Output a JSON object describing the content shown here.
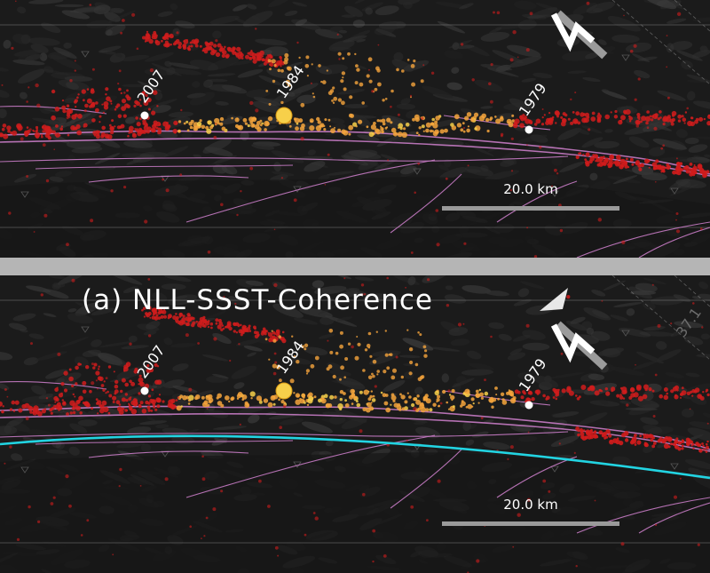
{
  "colors": {
    "terrain": "#1b1b1b",
    "fault_lines": "#c77bc4",
    "events_red": "#d01c1c",
    "events_orange": "#f5a43c",
    "events_yellow": "#f7d04a",
    "reference_curve": "#22d4e2",
    "scale_bar": "#9a9a9a",
    "separator": "#b5b5b5"
  },
  "panels": [
    {
      "title": "",
      "events": [
        {
          "label": "2007",
          "size": "small"
        },
        {
          "label": "1984",
          "size": "large"
        },
        {
          "label": "1979",
          "size": "small"
        }
      ],
      "scale_bar": {
        "label": "20.0 km"
      },
      "north_arrow": {
        "icon": "north-arrow-icon"
      },
      "reference_curve": false
    },
    {
      "title": "(a) NLL-SSST-Coherence",
      "coordinate_label": "37.1",
      "events": [
        {
          "label": "2007",
          "size": "small"
        },
        {
          "label": "1984",
          "size": "large"
        },
        {
          "label": "1979",
          "size": "small"
        }
      ],
      "scale_bar": {
        "label": "20.0 km"
      },
      "north_arrow": {
        "icon": "north-arrow-icon"
      },
      "reference_curve": true
    }
  ]
}
